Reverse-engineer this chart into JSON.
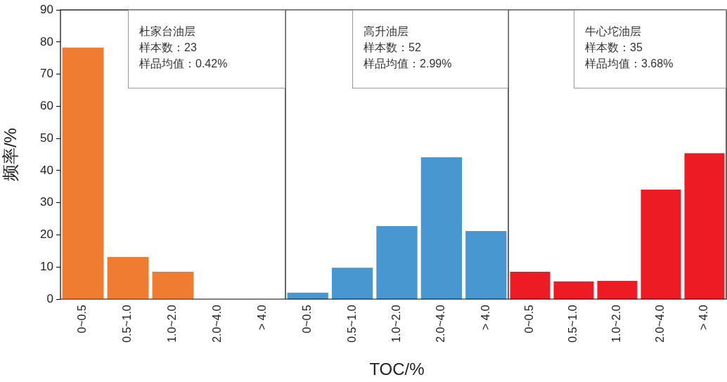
{
  "chart_data": [
    {
      "type": "bar",
      "ylabel": "频率/%",
      "categories": [
        "0~0.5",
        "0.5~1.0",
        "1.0~2.0",
        "2.0~4.0",
        "> 4.0"
      ],
      "values": [
        78.3,
        13.1,
        8.5,
        0,
        0
      ],
      "color": "#f07c32",
      "ylim": [
        0,
        90
      ],
      "yticks": [
        0,
        10,
        20,
        30,
        40,
        50,
        60,
        70,
        80,
        90
      ],
      "annotations": [
        "杜家台油层",
        "样本数：23",
        "样品均值：0.42%"
      ]
    },
    {
      "type": "bar",
      "xlabel": "TOC/%",
      "categories": [
        "0~0.5",
        "0.5~1.0",
        "1.0~2.0",
        "2.0~4.0",
        "> 4.0"
      ],
      "values": [
        2.0,
        9.8,
        22.7,
        44.1,
        21.2
      ],
      "color": "#4897d1",
      "ylim": [
        0,
        90
      ],
      "yticks": [
        0,
        10,
        20,
        30,
        40,
        50,
        60,
        70,
        80,
        90
      ],
      "tick_labels": "x",
      "annotations": [
        "高升油层",
        "样本数：52",
        "样品均值：2.99%"
      ]
    },
    {
      "type": "bar",
      "categories": [
        "0~0.5",
        "0.5~1.0",
        "1.0~2.0",
        "2.0~4.0",
        "> 4.0"
      ],
      "values": [
        8.5,
        5.5,
        5.7,
        34.1,
        45.4
      ],
      "color": "#ed1c24",
      "ylim": [
        0,
        90
      ],
      "yticks": [
        0,
        10,
        20,
        30,
        40,
        50,
        60,
        70,
        80,
        90
      ],
      "tick_labels": "x",
      "annotations": [
        "牛心坨油层",
        "样本数：35",
        "样品均值：3.68%"
      ]
    }
  ]
}
